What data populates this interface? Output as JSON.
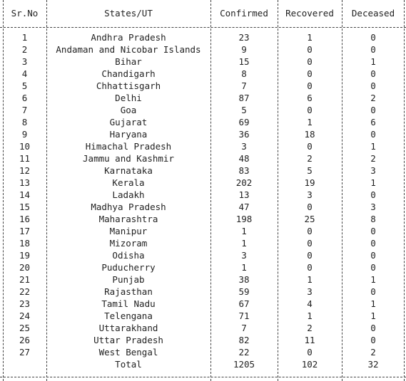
{
  "headers": [
    "Sr.No",
    "States/UT",
    "Confirmed",
    "Recovered",
    "Deceased"
  ],
  "rows": [
    [
      "1",
      "Andhra Pradesh",
      "23",
      "1",
      "0"
    ],
    [
      "2",
      "Andaman and Nicobar Islands",
      "9",
      "0",
      "0"
    ],
    [
      "3",
      "Bihar",
      "15",
      "0",
      "1"
    ],
    [
      "4",
      "Chandigarh",
      "8",
      "0",
      "0"
    ],
    [
      "5",
      "Chhattisgarh",
      "7",
      "0",
      "0"
    ],
    [
      "6",
      "Delhi",
      "87",
      "6",
      "2"
    ],
    [
      "7",
      "Goa",
      "5",
      "0",
      "0"
    ],
    [
      "8",
      "Gujarat",
      "69",
      "1",
      "6"
    ],
    [
      "9",
      "Haryana",
      "36",
      "18",
      "0"
    ],
    [
      "10",
      "Himachal Pradesh",
      "3",
      "0",
      "1"
    ],
    [
      "11",
      "Jammu and Kashmir",
      "48",
      "2",
      "2"
    ],
    [
      "12",
      "Karnataka",
      "83",
      "5",
      "3"
    ],
    [
      "13",
      "Kerala",
      "202",
      "19",
      "1"
    ],
    [
      "14",
      "Ladakh",
      "13",
      "3",
      "0"
    ],
    [
      "15",
      "Madhya Pradesh",
      "47",
      "0",
      "3"
    ],
    [
      "16",
      "Maharashtra",
      "198",
      "25",
      "8"
    ],
    [
      "17",
      "Manipur",
      "1",
      "0",
      "0"
    ],
    [
      "18",
      "Mizoram",
      "1",
      "0",
      "0"
    ],
    [
      "19",
      "Odisha",
      "3",
      "0",
      "0"
    ],
    [
      "20",
      "Puducherry",
      "1",
      "0",
      "0"
    ],
    [
      "21",
      "Punjab",
      "38",
      "1",
      "1"
    ],
    [
      "22",
      "Rajasthan",
      "59",
      "3",
      "0"
    ],
    [
      "23",
      "Tamil Nadu",
      "67",
      "4",
      "1"
    ],
    [
      "24",
      "Telengana",
      "71",
      "1",
      "1"
    ],
    [
      "25",
      "Uttarakhand",
      "7",
      "2",
      "0"
    ],
    [
      "26",
      "Uttar Pradesh",
      "82",
      "11",
      "0"
    ],
    [
      "27",
      "West Bengal",
      "22",
      "0",
      "2"
    ]
  ],
  "total": [
    "",
    "Total",
    "1205",
    "102",
    "32"
  ]
}
